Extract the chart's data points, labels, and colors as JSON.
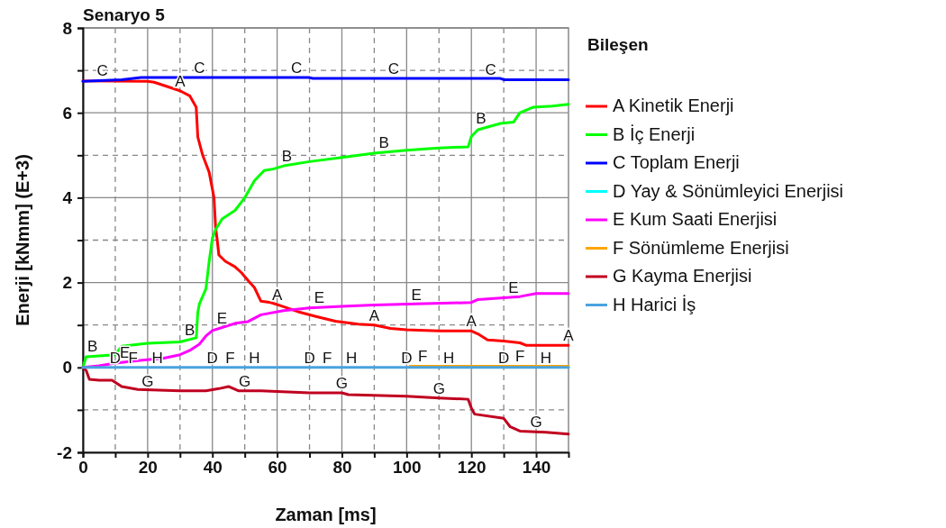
{
  "chart_data": {
    "type": "line",
    "title": "Senaryo 5",
    "xlabel": "Zaman [ms]",
    "ylabel": "Enerji [kNmm] (E+3)",
    "legend_title": "Bileşen",
    "xlim": [
      0,
      150
    ],
    "ylim": [
      -2,
      8
    ],
    "xticks": [
      0,
      {
        "value": 10,
        "label": null
      },
      20,
      {
        "value": 30,
        "label": null
      },
      40,
      {
        "value": 50,
        "label": null
      },
      60,
      {
        "value": 70,
        "label": null
      },
      80,
      {
        "value": 90,
        "label": null
      },
      100,
      {
        "value": 110,
        "label": null
      },
      120,
      {
        "value": 130,
        "label": null
      },
      140
    ],
    "yticks": [
      -2,
      {
        "value": -1,
        "label": null
      },
      0,
      {
        "value": 1,
        "label": null
      },
      2,
      {
        "value": 3,
        "label": null
      },
      4,
      {
        "value": 5,
        "label": null
      },
      6,
      {
        "value": 7,
        "label": null
      },
      8
    ],
    "grid": true,
    "legend": "right",
    "line_style": "solid",
    "series": [
      {
        "name": "A Kinetik Enerji",
        "color": "#ff0000",
        "x": [
          0,
          20,
          22,
          30,
          33,
          35,
          35.5,
          37,
          39,
          40.5,
          41,
          41.5,
          42,
          44,
          47,
          49,
          51,
          53,
          55,
          58,
          62,
          67,
          72,
          78,
          85,
          90,
          95,
          100,
          110,
          120,
          122,
          125,
          130,
          135,
          137,
          150
        ],
        "values": [
          6.75,
          6.74,
          6.72,
          6.52,
          6.4,
          6.13,
          5.43,
          5.0,
          4.6,
          4.0,
          3.3,
          3.0,
          2.65,
          2.5,
          2.37,
          2.23,
          2.05,
          1.88,
          1.56,
          1.53,
          1.43,
          1.3,
          1.2,
          1.09,
          1.02,
          1.0,
          0.92,
          0.89,
          0.86,
          0.86,
          0.79,
          0.65,
          0.62,
          0.58,
          0.52,
          0.52
        ]
      },
      {
        "name": "B İç Enerji",
        "color": "#00ff00",
        "x": [
          0,
          1,
          10,
          12,
          20,
          30,
          35,
          35.5,
          36,
          38,
          39,
          40,
          41,
          43,
          47,
          50,
          53,
          56,
          59,
          62,
          70,
          80,
          90,
          100,
          110,
          119,
          120,
          122,
          129,
          133,
          135,
          139,
          145,
          150
        ],
        "values": [
          0,
          0.25,
          0.3,
          0.5,
          0.57,
          0.6,
          0.7,
          1.3,
          1.5,
          1.85,
          2.5,
          3.05,
          3.25,
          3.5,
          3.7,
          4.0,
          4.4,
          4.64,
          4.68,
          4.75,
          4.85,
          4.95,
          5.05,
          5.12,
          5.17,
          5.2,
          5.44,
          5.6,
          5.75,
          5.78,
          6.0,
          6.13,
          6.16,
          6.2
        ]
      },
      {
        "name": "C Toplam Enerji",
        "color": "#0000ff",
        "x": [
          0,
          12,
          18,
          70,
          71,
          129,
          130,
          150
        ],
        "values": [
          6.74,
          6.78,
          6.83,
          6.83,
          6.81,
          6.81,
          6.78,
          6.78
        ]
      },
      {
        "name": "D Yay & Sönümleyici Enerjisi",
        "color": "#00ffff",
        "values": [
          null,
          null
        ]
      },
      {
        "name": "E Kum Saati Enerjisi",
        "color": "#ff00ff",
        "x": [
          0,
          5,
          10,
          17,
          25,
          30,
          33,
          36,
          38,
          40,
          43,
          47,
          51,
          55,
          62,
          70,
          80,
          90,
          100,
          120,
          122,
          135,
          140,
          150
        ],
        "values": [
          0,
          0.04,
          0.1,
          0.16,
          0.22,
          0.3,
          0.4,
          0.55,
          0.74,
          0.87,
          0.94,
          1.04,
          1.08,
          1.24,
          1.34,
          1.4,
          1.44,
          1.47,
          1.49,
          1.53,
          1.6,
          1.67,
          1.74,
          1.74
        ]
      },
      {
        "name": "F Sönümleme Enerjisi",
        "color": "#ffa500",
        "x": [
          101,
          150
        ],
        "values": [
          0.03,
          0.03
        ]
      },
      {
        "name": "G Kayma Enerjisi",
        "color": "#c00020",
        "x": [
          0,
          1,
          2,
          5,
          9,
          12,
          17,
          30,
          38,
          42,
          45,
          48,
          55,
          70,
          80,
          82,
          100,
          110,
          119,
          120,
          121,
          130,
          132,
          135,
          143,
          150
        ],
        "values": [
          0,
          -0.07,
          -0.28,
          -0.3,
          -0.3,
          -0.45,
          -0.52,
          -0.55,
          -0.55,
          -0.5,
          -0.45,
          -0.55,
          -0.55,
          -0.6,
          -0.6,
          -0.64,
          -0.68,
          -0.72,
          -0.75,
          -0.96,
          -1.1,
          -1.2,
          -1.4,
          -1.5,
          -1.53,
          -1.57
        ]
      },
      {
        "name": "H Harici İş",
        "color": "#4aa3df",
        "x": [
          0,
          150
        ],
        "values": [
          0,
          0
        ]
      }
    ],
    "annotations": [
      {
        "text": "A",
        "x": 30,
        "y": 6.52
      },
      {
        "text": "A",
        "x": 60,
        "y": 1.48
      },
      {
        "text": "A",
        "x": 90,
        "y": 1.0
      },
      {
        "text": "A",
        "x": 120,
        "y": 0.86
      },
      {
        "text": "A",
        "x": 150,
        "y": 0.52
      },
      {
        "text": "B",
        "x": 3,
        "y": 0.27
      },
      {
        "text": "B",
        "x": 33,
        "y": 0.65
      },
      {
        "text": "B",
        "x": 63,
        "y": 4.76
      },
      {
        "text": "B",
        "x": 93,
        "y": 5.07
      },
      {
        "text": "B",
        "x": 123,
        "y": 5.65
      },
      {
        "text": "C",
        "x": 6,
        "y": 6.76
      },
      {
        "text": "C",
        "x": 36,
        "y": 6.83
      },
      {
        "text": "C",
        "x": 66,
        "y": 6.83
      },
      {
        "text": "C",
        "x": 96,
        "y": 6.81
      },
      {
        "text": "C",
        "x": 126,
        "y": 6.78
      },
      {
        "text": "D",
        "x": 10,
        "y": 0
      },
      {
        "text": "D",
        "x": 40,
        "y": 0
      },
      {
        "text": "D",
        "x": 70,
        "y": 0
      },
      {
        "text": "D",
        "x": 100,
        "y": 0
      },
      {
        "text": "D",
        "x": 130,
        "y": 0
      },
      {
        "text": "E",
        "x": 13,
        "y": 0.12
      },
      {
        "text": "E",
        "x": 43,
        "y": 0.94
      },
      {
        "text": "E",
        "x": 73,
        "y": 1.41
      },
      {
        "text": "E",
        "x": 103,
        "y": 1.49
      },
      {
        "text": "E",
        "x": 133,
        "y": 1.65
      },
      {
        "text": "F",
        "x": 15.5,
        "y": 0
      },
      {
        "text": "F",
        "x": 45.5,
        "y": 0
      },
      {
        "text": "F",
        "x": 75.5,
        "y": 0
      },
      {
        "text": "F",
        "x": 105,
        "y": 0.03
      },
      {
        "text": "F",
        "x": 135,
        "y": 0.03
      },
      {
        "text": "G",
        "x": 20,
        "y": -0.55
      },
      {
        "text": "G",
        "x": 50,
        "y": -0.55
      },
      {
        "text": "G",
        "x": 80,
        "y": -0.6
      },
      {
        "text": "G",
        "x": 110,
        "y": -0.72
      },
      {
        "text": "G",
        "x": 140,
        "y": -1.52
      },
      {
        "text": "H",
        "x": 23,
        "y": 0
      },
      {
        "text": "H",
        "x": 53,
        "y": 0
      },
      {
        "text": "H",
        "x": 83,
        "y": 0
      },
      {
        "text": "H",
        "x": 113,
        "y": 0
      },
      {
        "text": "H",
        "x": 143,
        "y": 0
      }
    ]
  }
}
